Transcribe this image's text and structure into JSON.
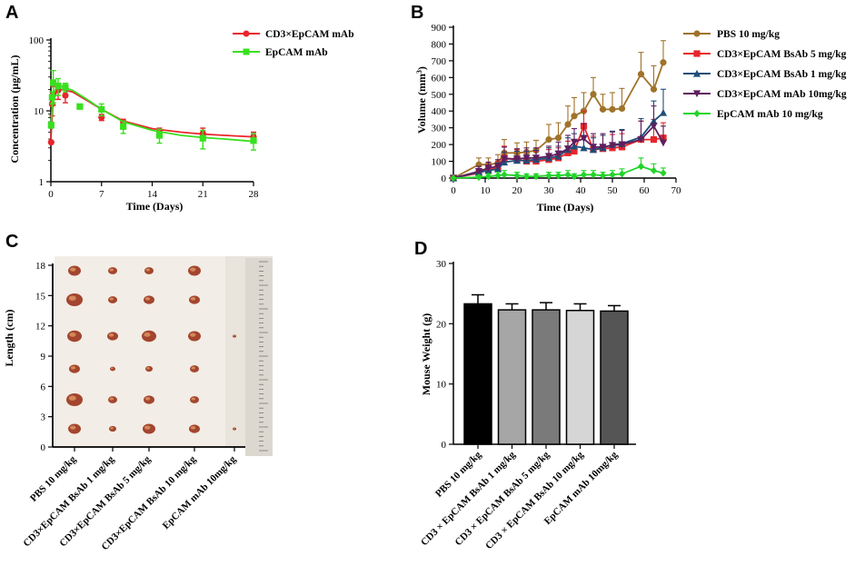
{
  "panels": {
    "A": "A",
    "B": "B",
    "C": "C",
    "D": "D"
  },
  "colors": {
    "red": "#e8262b",
    "green": "#39e01f",
    "brown": "#a0722a",
    "blue": "#1f4e79",
    "purple": "#5e1f5e",
    "brightgreen": "#22d42a"
  },
  "chart_data": [
    {
      "id": "A",
      "type": "line",
      "xlabel": "Time (Days)",
      "ylabel": "Concentration (μg/mL)",
      "yscale": "log",
      "xlim": [
        0,
        28
      ],
      "ylim": [
        1,
        100
      ],
      "xticks": [
        "0",
        "7",
        "14",
        "21",
        "28"
      ],
      "xtick_values": [
        0,
        7,
        14,
        21,
        28
      ],
      "yticks": [
        "1",
        "10",
        "100"
      ],
      "ytick_values": [
        1,
        10,
        100
      ],
      "series": [
        {
          "name": "CD3×EpCAM mAb",
          "color": "#e8262b",
          "marker": "circle",
          "points": [
            {
              "x": 0.04,
              "y": 3.6,
              "err": 0
            },
            {
              "x": 0.17,
              "y": 12.5,
              "err": 4
            },
            {
              "x": 0.33,
              "y": 17,
              "err": 5
            },
            {
              "x": 1,
              "y": 19.5,
              "err": 5
            },
            {
              "x": 2,
              "y": 16.5,
              "err": 3.5
            },
            {
              "x": 7,
              "y": 8.1,
              "err": 0.8
            },
            {
              "x": 10,
              "y": 7,
              "err": 0.6
            },
            {
              "x": 15,
              "y": 5,
              "err": 0.7
            },
            {
              "x": 21,
              "y": 4.8,
              "err": 0.9
            },
            {
              "x": 28,
              "y": 4.3,
              "err": 0.7
            }
          ],
          "fit": [
            [
              0,
              4
            ],
            [
              0.3,
              14
            ],
            [
              0.8,
              19
            ],
            [
              1.5,
              20
            ],
            [
              3,
              18.5
            ],
            [
              5,
              14
            ],
            [
              7,
              10.5
            ],
            [
              10,
              7.2
            ],
            [
              14,
              5.6
            ],
            [
              18,
              5
            ],
            [
              21,
              4.7
            ],
            [
              24,
              4.5
            ],
            [
              28,
              4.3
            ]
          ]
        },
        {
          "name": "EpCAM mAb",
          "color": "#39e01f",
          "marker": "square",
          "points": [
            {
              "x": 0.04,
              "y": 6.3,
              "err": 0.6
            },
            {
              "x": 0.17,
              "y": 15.5,
              "err": 3
            },
            {
              "x": 0.33,
              "y": 25,
              "err": 12
            },
            {
              "x": 1,
              "y": 22.5,
              "err": 6
            },
            {
              "x": 2,
              "y": 21.5,
              "err": 3
            },
            {
              "x": 4,
              "y": 11.5,
              "err": 0
            },
            {
              "x": 7,
              "y": 10.5,
              "err": 2
            },
            {
              "x": 10,
              "y": 6,
              "err": 1.2
            },
            {
              "x": 15,
              "y": 4.5,
              "err": 1
            },
            {
              "x": 21,
              "y": 4.1,
              "err": 1.2
            },
            {
              "x": 28,
              "y": 3.8,
              "err": 1
            }
          ],
          "fit": [
            [
              0,
              6
            ],
            [
              0.3,
              17
            ],
            [
              0.8,
              21.5
            ],
            [
              1.5,
              22
            ],
            [
              3,
              19.5
            ],
            [
              5,
              14.5
            ],
            [
              7,
              10.5
            ],
            [
              10,
              7
            ],
            [
              14,
              5.3
            ],
            [
              18,
              4.5
            ],
            [
              21,
              4.2
            ],
            [
              24,
              4
            ],
            [
              28,
              3.7
            ]
          ]
        }
      ]
    },
    {
      "id": "B",
      "type": "line",
      "xlabel": "Time (Days)",
      "ylabel": "Volume (mm",
      "ylabel_sup": "3",
      "ylabel_end": ")",
      "xlim": [
        0,
        70
      ],
      "ylim": [
        0,
        900
      ],
      "xticks": [
        "0",
        "10",
        "20",
        "30",
        "40",
        "50",
        "60",
        "70"
      ],
      "xtick_values": [
        0,
        10,
        20,
        30,
        40,
        50,
        60,
        70
      ],
      "yticks": [
        "0",
        "100",
        "200",
        "300",
        "400",
        "500",
        "600",
        "700",
        "800",
        "900"
      ],
      "ytick_values": [
        0,
        100,
        200,
        300,
        400,
        500,
        600,
        700,
        800,
        900
      ],
      "x": [
        0,
        8,
        11,
        14,
        16,
        20,
        23,
        26,
        30,
        33,
        36,
        38,
        41,
        44,
        47,
        50,
        53,
        59,
        63,
        66
      ],
      "series": [
        {
          "name": "PBS 10 mg/kg",
          "color": "#a0722a",
          "marker": "circle",
          "values": [
            0,
            80,
            80,
            90,
            150,
            150,
            155,
            165,
            230,
            240,
            320,
            370,
            400,
            500,
            410,
            410,
            415,
            620,
            530,
            690
          ],
          "errors": [
            0,
            40,
            40,
            50,
            80,
            60,
            60,
            60,
            90,
            90,
            110,
            110,
            110,
            100,
            90,
            100,
            120,
            130,
            140,
            130
          ]
        },
        {
          "name": "CD3×EpCAM BsAb 5 mg/kg",
          "color": "#e8262b",
          "marker": "square",
          "values": [
            0,
            30,
            50,
            60,
            120,
            110,
            100,
            100,
            110,
            120,
            150,
            160,
            310,
            170,
            175,
            180,
            185,
            230,
            230,
            240
          ],
          "errors": [
            0,
            20,
            30,
            40,
            70,
            60,
            60,
            60,
            60,
            60,
            70,
            70,
            90,
            80,
            80,
            80,
            80,
            110,
            120,
            90
          ]
        },
        {
          "name": "CD3×EpCAM BsAb 1 mg/kg",
          "color": "#1f4e79",
          "marker": "triangle",
          "values": [
            0,
            35,
            45,
            55,
            95,
            105,
            105,
            110,
            120,
            130,
            170,
            190,
            180,
            170,
            180,
            200,
            205,
            245,
            340,
            390
          ],
          "errors": [
            0,
            20,
            25,
            35,
            60,
            55,
            55,
            55,
            60,
            60,
            70,
            75,
            75,
            70,
            75,
            80,
            85,
            110,
            120,
            140
          ]
        },
        {
          "name": "CD3×EpCAM mAb 10mg/kg",
          "color": "#5e1f5e",
          "marker": "triangle-down",
          "values": [
            0,
            40,
            60,
            70,
            115,
            115,
            120,
            120,
            130,
            145,
            175,
            215,
            235,
            185,
            185,
            195,
            200,
            230,
            310,
            210
          ],
          "errors": [
            0,
            30,
            35,
            40,
            70,
            60,
            60,
            60,
            60,
            70,
            80,
            80,
            90,
            80,
            80,
            80,
            85,
            110,
            120,
            100
          ]
        },
        {
          "name": "EpCAM mAb 10 mg/kg",
          "color": "#22d42a",
          "marker": "diamond",
          "values": [
            0,
            5,
            10,
            15,
            20,
            15,
            10,
            10,
            15,
            15,
            20,
            10,
            20,
            20,
            15,
            20,
            25,
            70,
            45,
            30
          ],
          "errors": [
            0,
            10,
            15,
            20,
            25,
            20,
            15,
            15,
            20,
            20,
            25,
            15,
            25,
            25,
            20,
            25,
            30,
            50,
            40,
            30
          ]
        }
      ]
    },
    {
      "id": "C",
      "type": "photo",
      "ylabel": "Length (cm)",
      "yticks": [
        "18",
        "15",
        "12",
        "9",
        "6",
        "3",
        "0"
      ],
      "ytick_values": [
        18,
        15,
        12,
        9,
        6,
        3,
        0
      ],
      "categories": [
        "PBS 10 mg/kg",
        "CD3×EpCAM BsAb 1 mg/kg",
        "CD3×EpCAM BsAb 5 mg/kg",
        "CD3×EpCAM BsAb 10 mg/kg",
        "EpCAM mAb 10mg/kg"
      ]
    },
    {
      "id": "D",
      "type": "bar",
      "ylabel": "Mouse Weight (g)",
      "ylim": [
        0,
        30
      ],
      "yticks": [
        "0",
        "10",
        "20",
        "30"
      ],
      "ytick_values": [
        0,
        10,
        20,
        30
      ],
      "categories": [
        "PBS 10 mg/kg",
        "CD3 × EpCAM BsAb 1 mg/kg",
        "CD3 × EpCAM BsAb 5 mg/kg",
        "CD3 × EpCAM BsAb 10 mg/kg",
        "EpCAM mAb 10mg/kg"
      ],
      "values": [
        23.3,
        22.3,
        22.3,
        22.2,
        22.1
      ],
      "errors": [
        1.5,
        1.0,
        1.2,
        1.1,
        0.9
      ],
      "fills": [
        "#000000",
        "#a6a6a6",
        "#7a7a7a",
        "#d6d6d6",
        "#555555"
      ]
    }
  ]
}
